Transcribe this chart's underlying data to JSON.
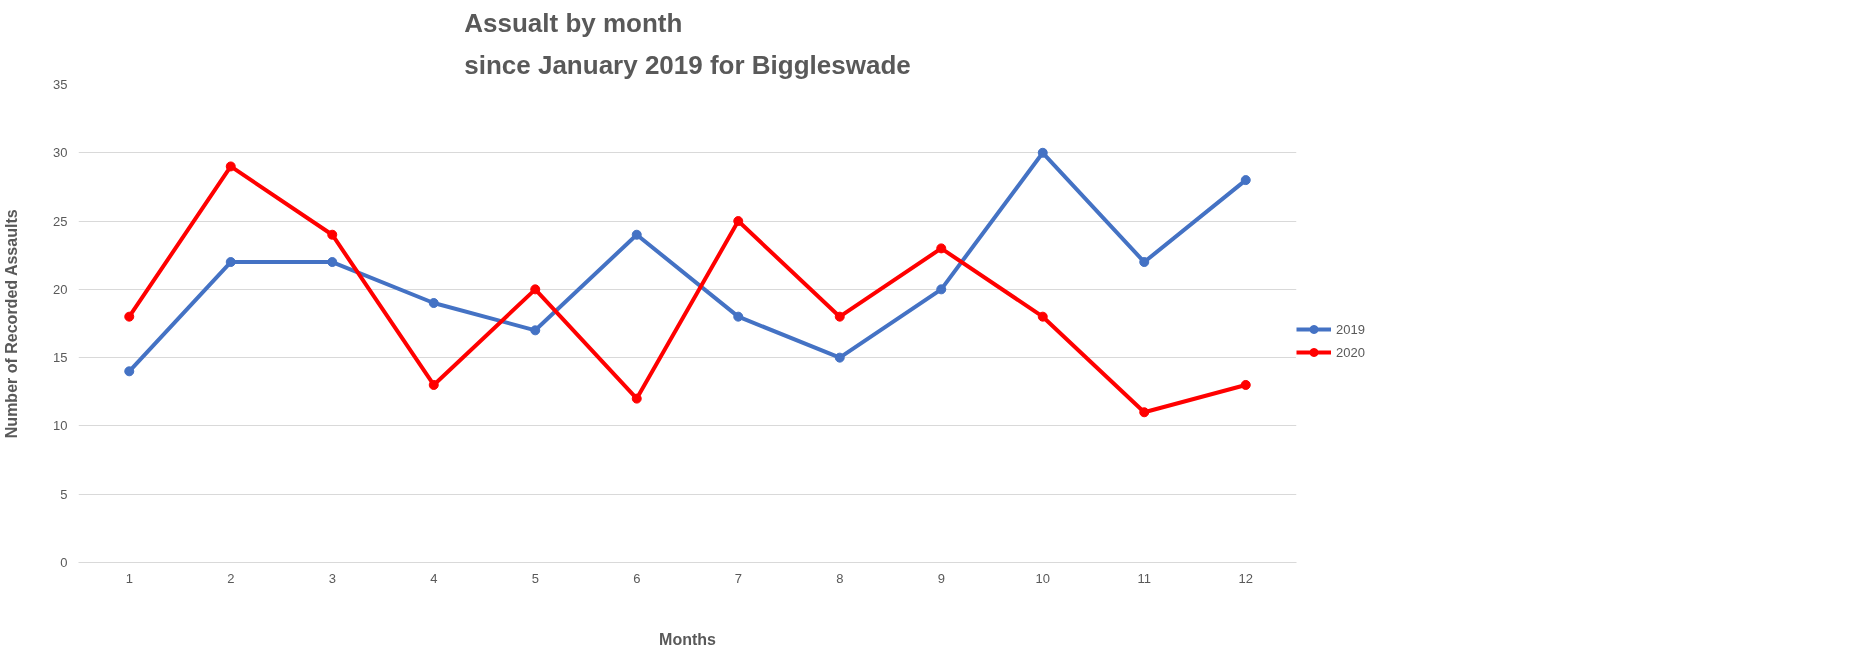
{
  "chart_data": {
    "type": "line",
    "title": "Assualt by month\nsince January 2019 for Biggleswade",
    "xlabel": "Months",
    "ylabel": "Number of Recorded Assaults",
    "categories": [
      "1",
      "2",
      "3",
      "4",
      "5",
      "6",
      "7",
      "8",
      "9",
      "10",
      "11",
      "12"
    ],
    "series": [
      {
        "name": "2019",
        "color": "#4472c4",
        "values": [
          14,
          22,
          22,
          19,
          17,
          24,
          18,
          15,
          20,
          30,
          22,
          28
        ]
      },
      {
        "name": "2020",
        "color": "#ff0000",
        "values": [
          18,
          29,
          24,
          13,
          20,
          12,
          25,
          18,
          23,
          18,
          11,
          13
        ]
      }
    ],
    "ylim": [
      0,
      35
    ],
    "yticks": [
      0,
      5,
      10,
      15,
      20,
      25,
      30,
      35
    ],
    "grid": "y",
    "legend": "right",
    "marker": "circle",
    "line_style": "solid"
  }
}
